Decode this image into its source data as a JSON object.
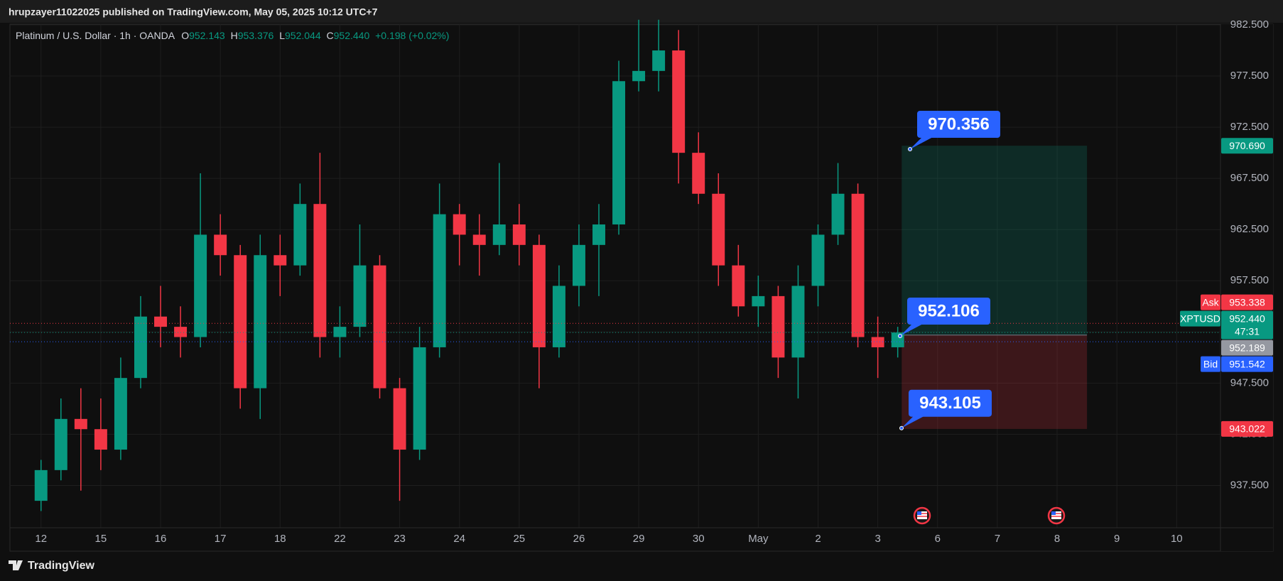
{
  "header": {
    "text": "hrupzayer11022025 published on TradingView.com, May 05, 2025 10:12 UTC+7"
  },
  "legend": {
    "symbol": "Platinum / U.S. Dollar · 1h · OANDA",
    "fields": [
      {
        "key": "O",
        "value": "952.143"
      },
      {
        "key": "H",
        "value": "953.376"
      },
      {
        "key": "L",
        "value": "952.044"
      },
      {
        "key": "C",
        "value": "952.440"
      }
    ],
    "change": "+0.198 (+0.02%)"
  },
  "chart_data": {
    "type": "candlestick",
    "x": [
      0,
      1,
      2,
      3,
      4,
      5,
      6,
      7,
      8,
      9,
      10,
      11,
      12,
      13,
      14,
      15,
      16,
      17,
      18,
      19,
      20,
      21,
      22,
      23,
      24,
      25,
      26,
      27,
      28,
      29,
      30,
      31,
      32,
      33,
      34,
      35,
      36,
      37,
      38,
      39,
      40,
      41,
      42,
      43
    ],
    "open": [
      936,
      939,
      944,
      943,
      941,
      948,
      954,
      953,
      952,
      962,
      960,
      947,
      960,
      959,
      965,
      952,
      953,
      959,
      947,
      941,
      951,
      964,
      962,
      961,
      963,
      961,
      951,
      957,
      961,
      963,
      977,
      978,
      980,
      970,
      966,
      959,
      955,
      956,
      950,
      957,
      962,
      966,
      952,
      951
    ],
    "high": [
      940,
      946,
      947,
      946,
      950,
      956,
      957,
      955,
      968,
      964,
      961,
      962,
      962,
      967,
      970,
      955,
      963,
      960,
      948,
      953,
      967,
      965,
      964,
      969,
      965,
      962,
      959,
      963,
      965,
      979,
      983,
      983,
      982,
      972,
      968,
      961,
      958,
      957,
      959,
      963,
      969,
      967,
      954,
      953
    ],
    "low": [
      935,
      938,
      937,
      939,
      940,
      947,
      951,
      950,
      951,
      958,
      945,
      944,
      956,
      958,
      950,
      950,
      952,
      946,
      936,
      940,
      950,
      959,
      958,
      960,
      959,
      947,
      950,
      955,
      956,
      962,
      976,
      976,
      967,
      965,
      957,
      954,
      953,
      948,
      946,
      955,
      961,
      951,
      948,
      950
    ],
    "close": [
      939,
      944,
      943,
      941,
      948,
      954,
      953,
      952,
      962,
      960,
      947,
      960,
      959,
      965,
      952,
      953,
      959,
      947,
      941,
      951,
      964,
      962,
      961,
      963,
      961,
      951,
      957,
      961,
      963,
      977,
      978,
      980,
      970,
      966,
      959,
      955,
      956,
      950,
      957,
      962,
      966,
      952,
      951,
      952.44
    ],
    "up_color": "#089981",
    "down_color": "#f23645",
    "xlim": [
      -1.56,
      59.2
    ],
    "ylim": [
      933.37,
      982.5
    ],
    "grid": true,
    "xticks": [
      {
        "value": 0,
        "label": "12"
      },
      {
        "value": 3,
        "label": "15"
      },
      {
        "value": 6,
        "label": "16"
      },
      {
        "value": 9,
        "label": "17"
      },
      {
        "value": 12,
        "label": "18"
      },
      {
        "value": 15,
        "label": "22"
      },
      {
        "value": 18,
        "label": "23"
      },
      {
        "value": 21,
        "label": "24"
      },
      {
        "value": 24,
        "label": "25"
      },
      {
        "value": 27,
        "label": "26"
      },
      {
        "value": 30,
        "label": "29"
      },
      {
        "value": 33,
        "label": "30"
      },
      {
        "value": 36,
        "label": "May"
      },
      {
        "value": 39,
        "label": "2"
      },
      {
        "value": 42,
        "label": "3"
      },
      {
        "value": 45,
        "label": "6"
      },
      {
        "value": 48,
        "label": "7"
      },
      {
        "value": 51,
        "label": "8"
      },
      {
        "value": 54,
        "label": "9"
      },
      {
        "value": 57,
        "label": "10"
      }
    ],
    "yticks": [
      {
        "value": 937.5,
        "label": "937.500"
      },
      {
        "value": 942.5,
        "label": "942.500"
      },
      {
        "value": 947.5,
        "label": "947.500"
      },
      {
        "value": 952.5,
        "label": "952.500"
      },
      {
        "value": 957.5,
        "label": "957.500"
      },
      {
        "value": 962.5,
        "label": "962.500"
      },
      {
        "value": 967.5,
        "label": "967.500"
      },
      {
        "value": 972.5,
        "label": "972.500"
      },
      {
        "value": 977.5,
        "label": "977.500"
      },
      {
        "value": 982.5,
        "label": "982.500"
      }
    ],
    "position": {
      "x_range": [
        43.2,
        52.5
      ],
      "target": {
        "value": 970.69,
        "label": "970.690"
      },
      "entry": {
        "value": 952.189,
        "label": "952.189"
      },
      "stop": {
        "value": 943.022,
        "label": "943.022"
      }
    },
    "quotes": {
      "ask": {
        "name": "Ask",
        "value": 953.338,
        "label": "953.338",
        "color": "#f23645"
      },
      "last": {
        "name": "XPTUSD",
        "value": 952.44,
        "label": "952.440",
        "countdown": "47:31",
        "color": "#089981"
      },
      "bid": {
        "name": "Bid",
        "value": 951.542,
        "label": "951.542",
        "color": "#2962ff"
      }
    },
    "callouts": [
      970.356,
      952.106,
      943.105
    ]
  },
  "footer": {
    "brand": "TradingView"
  }
}
